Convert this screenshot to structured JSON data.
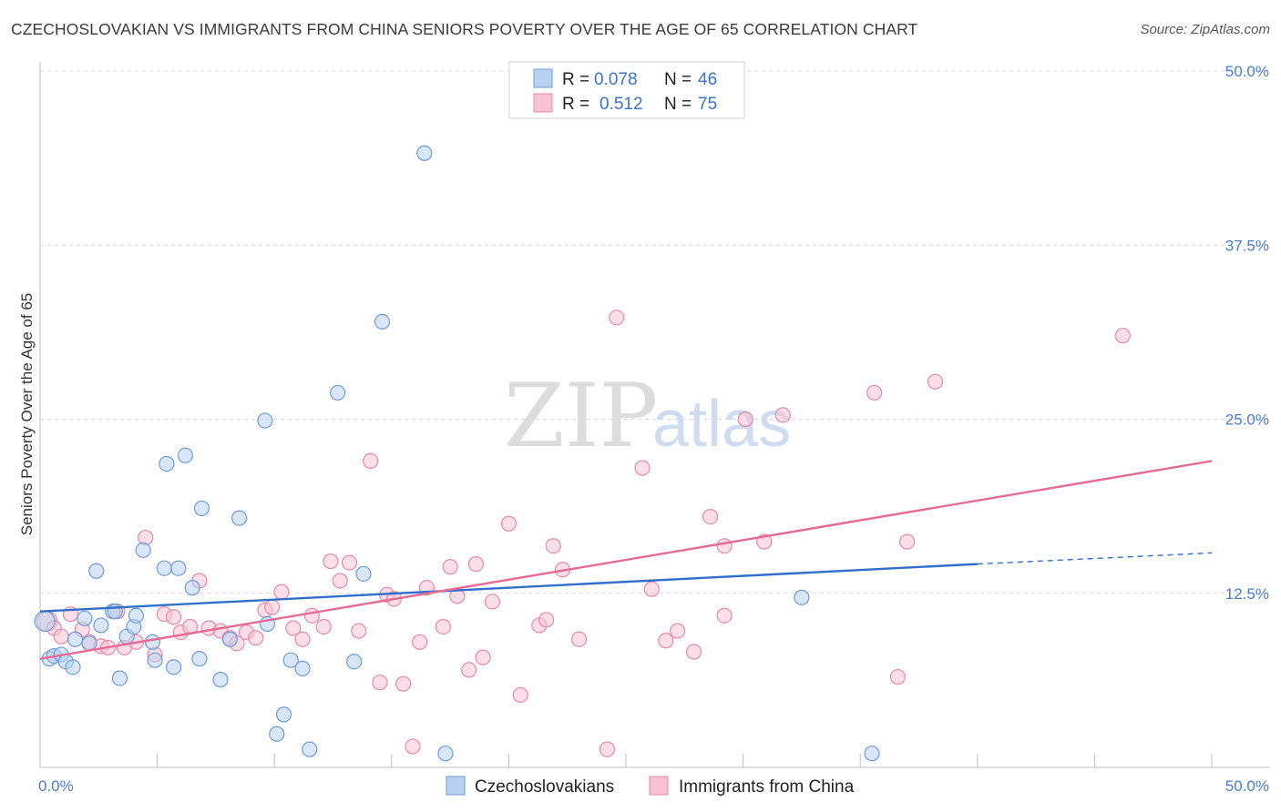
{
  "title": "CZECHOSLOVAKIAN VS IMMIGRANTS FROM CHINA SENIORS POVERTY OVER THE AGE OF 65 CORRELATION CHART",
  "source": "Source: ZipAtlas.com",
  "watermark": {
    "part1": "ZIP",
    "part2": "atlas"
  },
  "legend": {
    "series1": {
      "r_label": "R = ",
      "r_value": "0.078",
      "n_label": "N = ",
      "n_value": "46"
    },
    "series2": {
      "r_label": "R = ",
      "r_value": "0.512",
      "n_label": "N = ",
      "n_value": "75"
    }
  },
  "bottom_legend": {
    "series1": "Czechoslovakians",
    "series2": "Immigrants from China"
  },
  "colors": {
    "blue_fill": "#b9d1f1",
    "blue_stroke": "#6e9bd8",
    "blue_line": "#2f6fc9",
    "pink_fill": "#f7c3d4",
    "pink_stroke": "#e58aa8",
    "pink_line": "#e46b94",
    "grid": "#d9d9d9",
    "tick_text": "#4a7cc7"
  },
  "chart_data": {
    "type": "scatter",
    "title": "CZECHOSLOVAKIAN VS IMMIGRANTS FROM CHINA SENIORS POVERTY OVER THE AGE OF 65 CORRELATION CHART",
    "xlabel": "",
    "ylabel": "Seniors Poverty Over the Age of 65",
    "xlim": [
      0,
      50
    ],
    "ylim": [
      0,
      50
    ],
    "x_tick_labels": [
      "0.0%",
      "50.0%"
    ],
    "y_ticks": [
      12.5,
      25.0,
      37.5,
      50.0
    ],
    "y_tick_labels": [
      "12.5%",
      "25.0%",
      "37.5%",
      "50.0%"
    ],
    "series": [
      {
        "name": "Czechoslovakians",
        "R": 0.078,
        "N": 46,
        "trend": {
          "x0": 0,
          "y0": 11.2,
          "x1": 40,
          "y1": 14.6,
          "dash_x_end": 50,
          "dash_y_end": 15.4
        },
        "points": [
          [
            0.2,
            10.5
          ],
          [
            0.4,
            7.8
          ],
          [
            0.6,
            8.0
          ],
          [
            0.9,
            8.1
          ],
          [
            1.1,
            7.6
          ],
          [
            1.4,
            7.2
          ],
          [
            1.5,
            9.2
          ],
          [
            1.9,
            10.7
          ],
          [
            2.1,
            8.9
          ],
          [
            2.4,
            14.1
          ],
          [
            2.6,
            10.2
          ],
          [
            3.1,
            11.2
          ],
          [
            3.4,
            6.4
          ],
          [
            3.7,
            9.4
          ],
          [
            4.0,
            10.1
          ],
          [
            4.1,
            10.9
          ],
          [
            4.4,
            15.6
          ],
          [
            4.8,
            9.0
          ],
          [
            4.9,
            7.7
          ],
          [
            5.3,
            14.3
          ],
          [
            5.4,
            21.8
          ],
          [
            5.7,
            7.2
          ],
          [
            5.9,
            14.3
          ],
          [
            6.2,
            22.4
          ],
          [
            6.5,
            12.9
          ],
          [
            6.8,
            7.8
          ],
          [
            6.9,
            18.6
          ],
          [
            7.7,
            6.3
          ],
          [
            8.1,
            9.2
          ],
          [
            8.5,
            17.9
          ],
          [
            9.6,
            24.9
          ],
          [
            9.7,
            10.3
          ],
          [
            10.1,
            2.4
          ],
          [
            10.4,
            3.8
          ],
          [
            10.7,
            7.7
          ],
          [
            11.2,
            7.1
          ],
          [
            11.5,
            1.3
          ],
          [
            12.7,
            26.9
          ],
          [
            13.4,
            7.6
          ],
          [
            14.6,
            32.0
          ],
          [
            13.8,
            13.9
          ],
          [
            16.4,
            44.1
          ],
          [
            17.3,
            1.0
          ],
          [
            32.5,
            12.2
          ],
          [
            35.5,
            1.0
          ],
          [
            3.2,
            11.2
          ]
        ]
      },
      {
        "name": "Immigrants from China",
        "R": 0.512,
        "N": 75,
        "trend": {
          "x0": 0,
          "y0": 7.8,
          "x1": 50,
          "y1": 22.0
        },
        "points": [
          [
            0.3,
            10.5
          ],
          [
            0.6,
            10.0
          ],
          [
            0.9,
            9.4
          ],
          [
            1.3,
            11.0
          ],
          [
            1.8,
            9.9
          ],
          [
            2.1,
            9.0
          ],
          [
            2.6,
            8.7
          ],
          [
            2.9,
            8.6
          ],
          [
            3.3,
            11.2
          ],
          [
            3.6,
            8.6
          ],
          [
            4.1,
            9.0
          ],
          [
            4.5,
            16.5
          ],
          [
            4.9,
            8.1
          ],
          [
            5.3,
            11.0
          ],
          [
            5.7,
            10.8
          ],
          [
            6.0,
            9.7
          ],
          [
            6.4,
            10.1
          ],
          [
            6.8,
            13.4
          ],
          [
            7.2,
            10.0
          ],
          [
            7.7,
            9.8
          ],
          [
            8.1,
            9.3
          ],
          [
            8.4,
            8.9
          ],
          [
            8.8,
            9.7
          ],
          [
            9.2,
            9.3
          ],
          [
            9.6,
            11.3
          ],
          [
            9.9,
            11.5
          ],
          [
            10.3,
            12.6
          ],
          [
            10.8,
            10.0
          ],
          [
            11.2,
            9.2
          ],
          [
            11.6,
            10.9
          ],
          [
            12.1,
            10.1
          ],
          [
            12.4,
            14.8
          ],
          [
            12.8,
            13.4
          ],
          [
            13.2,
            14.7
          ],
          [
            13.6,
            9.8
          ],
          [
            14.1,
            22.0
          ],
          [
            14.5,
            6.1
          ],
          [
            14.8,
            12.4
          ],
          [
            15.1,
            12.1
          ],
          [
            15.5,
            6.0
          ],
          [
            15.9,
            1.5
          ],
          [
            16.2,
            9.0
          ],
          [
            16.5,
            12.9
          ],
          [
            17.2,
            10.1
          ],
          [
            17.5,
            14.4
          ],
          [
            17.8,
            12.3
          ],
          [
            18.3,
            7.0
          ],
          [
            18.6,
            14.6
          ],
          [
            18.9,
            7.9
          ],
          [
            19.3,
            11.9
          ],
          [
            20.0,
            17.5
          ],
          [
            20.5,
            5.2
          ],
          [
            21.3,
            10.2
          ],
          [
            21.6,
            10.6
          ],
          [
            21.9,
            15.9
          ],
          [
            22.3,
            14.2
          ],
          [
            23.0,
            9.2
          ],
          [
            24.2,
            1.3
          ],
          [
            24.6,
            32.3
          ],
          [
            25.7,
            21.5
          ],
          [
            26.1,
            12.8
          ],
          [
            26.7,
            9.1
          ],
          [
            27.2,
            9.8
          ],
          [
            27.9,
            8.3
          ],
          [
            28.6,
            18.0
          ],
          [
            29.2,
            15.9
          ],
          [
            29.2,
            10.9
          ],
          [
            30.1,
            25.0
          ],
          [
            30.9,
            16.2
          ],
          [
            31.7,
            25.3
          ],
          [
            35.6,
            26.9
          ],
          [
            36.6,
            6.5
          ],
          [
            37.0,
            16.2
          ],
          [
            38.2,
            27.7
          ],
          [
            46.2,
            31.0
          ]
        ]
      }
    ]
  }
}
